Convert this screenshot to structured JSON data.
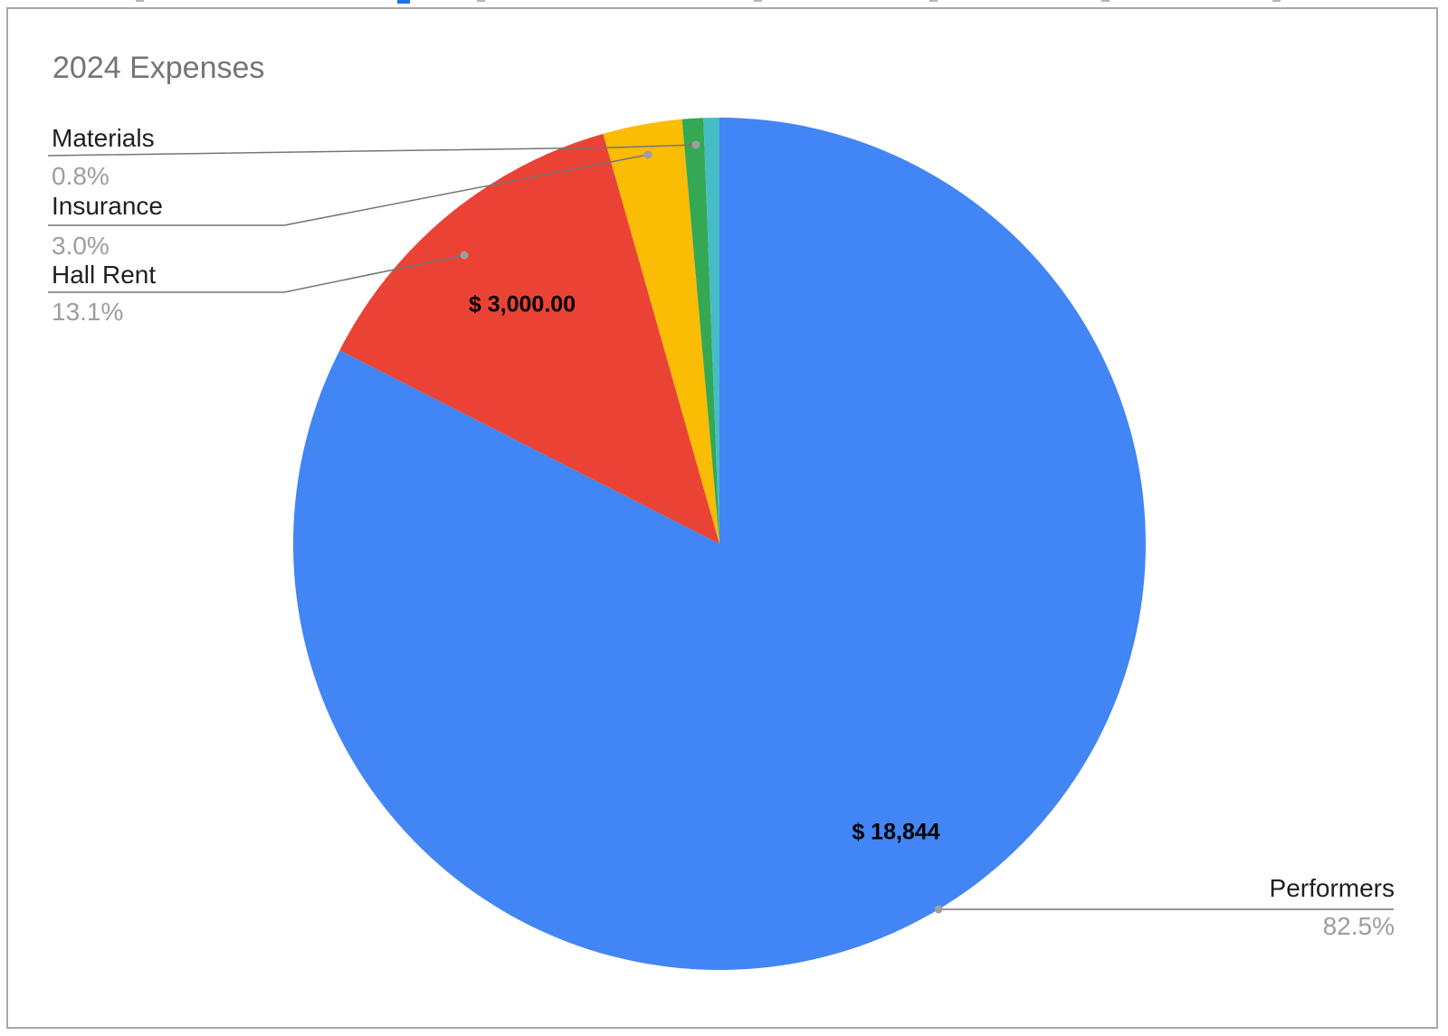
{
  "chart_data": {
    "type": "pie",
    "title": "2024 Expenses",
    "start_angle_deg": 0,
    "direction": "clockwise",
    "legend_position": "none",
    "label_style": "outside-callouts",
    "slices": [
      {
        "label": "Performers",
        "pct": 82.5,
        "value_label": "$ 18,844",
        "color": "#4285F4"
      },
      {
        "label": "Hall Rent",
        "pct": 13.1,
        "value_label": "$ 3,000.00",
        "color": "#EA4335"
      },
      {
        "label": "Insurance",
        "pct": 3.0,
        "color": "#FBBC04"
      },
      {
        "label": "Materials",
        "pct": 0.8,
        "color": "#34A853"
      },
      {
        "label": "",
        "pct": 0.6,
        "color": "#46BDC6"
      }
    ]
  },
  "title": "2024 Expenses",
  "callouts": {
    "materials": {
      "name": "Materials",
      "pct": "0.8%"
    },
    "insurance": {
      "name": "Insurance",
      "pct": "3.0%"
    },
    "hall_rent": {
      "name": "Hall Rent",
      "pct": "13.1%"
    },
    "performers": {
      "name": "Performers",
      "pct": "82.5%"
    }
  },
  "value_labels": {
    "hall_rent": "$ 3,000.00",
    "performers": "$ 18,844"
  },
  "colors": {
    "performers": "#4285F4",
    "hall_rent": "#EA4335",
    "insurance": "#FBBC04",
    "materials": "#34A853",
    "other": "#46BDC6",
    "title_text": "#757575",
    "pct_text": "#9e9e9e",
    "leader_line": "#757575",
    "top_accent": "#1a73e8"
  }
}
